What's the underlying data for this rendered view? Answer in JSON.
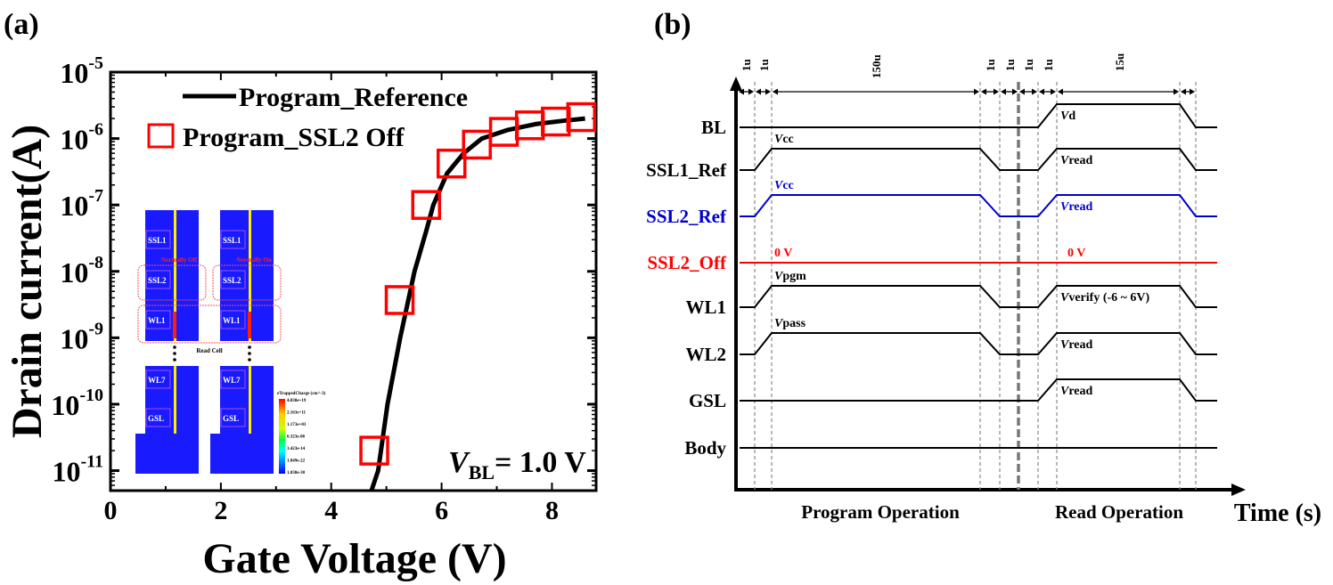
{
  "panel_a_label": "(a)",
  "panel_b_label": "(b)",
  "chart_data": {
    "type": "line+scatter",
    "xlabel": "Gate Voltage (V)",
    "ylabel": "Drain current(A)",
    "xlim": [
      0,
      8.8
    ],
    "ylim": [
      5e-12,
      1e-05
    ],
    "yscale": "log",
    "xticks": [
      "0",
      "2",
      "4",
      "6",
      "8"
    ],
    "xtick_values": [
      0,
      2,
      4,
      6,
      8
    ],
    "yticks": [
      {
        "base": "10",
        "exp": "-5",
        "value": 1e-05
      },
      {
        "base": "10",
        "exp": "-6",
        "value": 1e-06
      },
      {
        "base": "10",
        "exp": "-7",
        "value": 1e-07
      },
      {
        "base": "10",
        "exp": "-8",
        "value": 1e-08
      },
      {
        "base": "10",
        "exp": "-9",
        "value": 1e-09
      },
      {
        "base": "10",
        "exp": "-10",
        "value": 1e-10
      },
      {
        "base": "10",
        "exp": "-11",
        "value": 1e-11
      }
    ],
    "legend_position": "top-left",
    "series": [
      {
        "name": "Program_Reference",
        "kind": "line",
        "color": "#000000",
        "x": [
          4.73,
          4.85,
          5.02,
          5.25,
          5.51,
          5.72,
          5.85,
          6.1,
          6.4,
          6.73,
          7.2,
          7.7,
          8.2,
          8.6
        ],
        "y": [
          5e-12,
          1e-11,
          1e-10,
          1e-09,
          1e-08,
          4e-08,
          1e-07,
          3e-07,
          6e-07,
          1e-06,
          1.35e-06,
          1.65e-06,
          1.85e-06,
          2e-06
        ]
      },
      {
        "name": "Program_SSL2 Off",
        "kind": "scatter",
        "marker": "open-square",
        "color": "#ff0000",
        "x": [
          4.78,
          5.24,
          5.72,
          6.18,
          6.64,
          7.13,
          7.6,
          8.07,
          8.53
        ],
        "y": [
          2e-11,
          3.7e-09,
          1e-07,
          4.2e-07,
          8.1e-07,
          1.26e-06,
          1.58e-06,
          1.8e-06,
          2.1e-06
        ]
      }
    ],
    "annotation": {
      "v": "V",
      "sub": "BL",
      "rest": "= 1.0 V"
    }
  },
  "inset": {
    "left_labels": [
      "SSL1",
      "SSL2",
      "WL1",
      "WL7",
      "GSL"
    ],
    "right_labels": [
      "SSL1",
      "SSL2",
      "WL1",
      "WL7",
      "GSL"
    ],
    "normally_off": "Normally Off",
    "normally_on": "Normally On",
    "read_cell": "Read Cell",
    "colorbar_title": "eTrappedCharge (cm^-3)",
    "colorbar_values": [
      "4.838e+19",
      "2.163e+11",
      "1.173e+03",
      "6.323e-06",
      "3.423e-14",
      "1.849e-22",
      "1.838e-30"
    ],
    "colors": {
      "device": "#1a1aff",
      "channel": "#ffee00",
      "highlight": "#ff4d4d"
    }
  },
  "timing": {
    "interval_labels": [
      "1u",
      "1u",
      "150u",
      "1u",
      "1u",
      "1u",
      "1u",
      "15u"
    ],
    "signals": [
      {
        "name": "BL",
        "color": "#000000",
        "program": false,
        "read": true,
        "program_label": "",
        "read_label_v": "V",
        "read_label": "d"
      },
      {
        "name": "SSL1_Ref",
        "color": "#000000",
        "program": true,
        "read": true,
        "program_label_v": "V",
        "program_label": "cc",
        "read_label_v": "V",
        "read_label": "read"
      },
      {
        "name": "SSL2_Ref",
        "color": "#0000cc",
        "program": true,
        "read": true,
        "program_label_v": "V",
        "program_label": "cc",
        "read_label_v": "V",
        "read_label": "read"
      },
      {
        "name": "SSL2_Off",
        "color": "#ff0000",
        "program": false,
        "read": false,
        "program_label_v": "",
        "program_label": "0 V",
        "read_label_v": "",
        "read_label": "0 V"
      },
      {
        "name": "WL1",
        "color": "#000000",
        "program": true,
        "read": true,
        "program_label_v": "V",
        "program_label": "pgm",
        "read_label_v": "V",
        "read_label": "verify (-6 ~ 6V)"
      },
      {
        "name": "WL2",
        "color": "#000000",
        "program": true,
        "read": true,
        "program_label_v": "V",
        "program_label": "pass",
        "read_label_v": "V",
        "read_label": "read"
      },
      {
        "name": "GSL",
        "color": "#000000",
        "program": false,
        "read": true,
        "program_label_v": "",
        "program_label": "",
        "read_label_v": "V",
        "read_label": "read"
      },
      {
        "name": "Body",
        "color": "#000000",
        "program": false,
        "read": false,
        "program_label_v": "",
        "program_label": "",
        "read_label_v": "",
        "read_label": ""
      }
    ],
    "program_operation": "Program Operation",
    "read_operation": "Read Operation",
    "time_axis": "Time (s)"
  }
}
